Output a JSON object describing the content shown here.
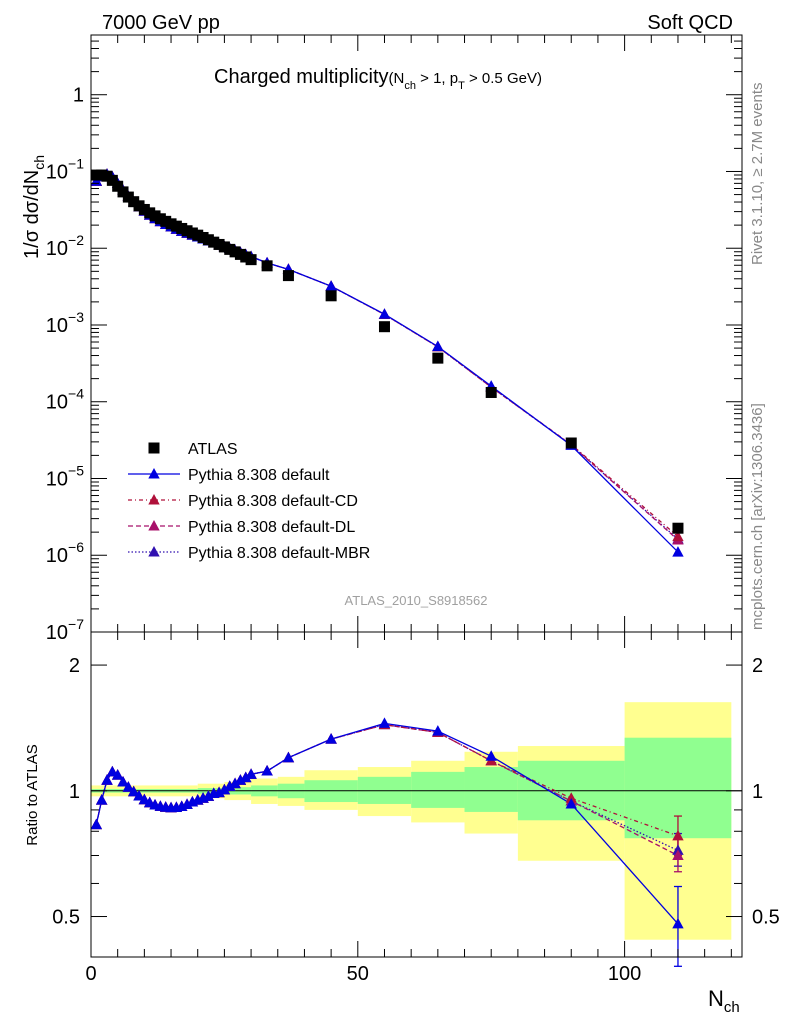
{
  "header": {
    "left": "7000 GeV pp",
    "right": "Soft QCD"
  },
  "side_labels": {
    "rivet": "Rivet 3.1.10, ≥ 2.7M events",
    "source": "mcplots.cern.ch [arXiv:1306.3436]"
  },
  "colors": {
    "atlas": "#000000",
    "default": "#0000e0",
    "cd": "#b0103a",
    "dl": "#a8106a",
    "mbr": "#3010b0",
    "band_stat": "#90ff90",
    "band_total": "#ffff90"
  },
  "chart_data": [
    {
      "type": "scatter",
      "title_main": "Charged multiplicity",
      "title_sub_prefix": "(N",
      "title_sub_sub1": "ch",
      "title_sub_mid": " > 1, p",
      "title_sub_sub2": "T",
      "title_sub_suffix": " > 0.5 GeV)",
      "ylabel": "1/σ dσ/dN",
      "ylabel_sub": "ch",
      "yscale": "log",
      "ylim": [
        1e-07,
        6
      ],
      "xlim": [
        0,
        122
      ],
      "watermark": "ATLAS_2010_S8918562",
      "ytick_labels": [
        {
          "base": "10",
          "exp": "−7",
          "value": 1e-07
        },
        {
          "base": "10",
          "exp": "−6",
          "value": 1e-06
        },
        {
          "base": "10",
          "exp": "−5",
          "value": 1e-05
        },
        {
          "base": "10",
          "exp": "−4",
          "value": 0.0001
        },
        {
          "base": "10",
          "exp": "−3",
          "value": 0.001
        },
        {
          "base": "10",
          "exp": "−2",
          "value": 0.01
        },
        {
          "base": "10",
          "exp": "−1",
          "value": 0.1
        },
        {
          "base": "1",
          "exp": "",
          "value": 1
        }
      ],
      "legend": [
        {
          "label": "ATLAS",
          "key": "atlas",
          "marker": "square",
          "dash": ""
        },
        {
          "label": "Pythia 8.308 default",
          "key": "default",
          "marker": "triangle",
          "dash": ""
        },
        {
          "label": "Pythia 8.308 default-CD",
          "key": "cd",
          "marker": "triangle",
          "dash": "4,3,1,3"
        },
        {
          "label": "Pythia 8.308 default-DL",
          "key": "dl",
          "marker": "triangle",
          "dash": "5,3"
        },
        {
          "label": "Pythia 8.308 default-MBR",
          "key": "mbr",
          "marker": "triangle",
          "dash": "1.5,2"
        }
      ],
      "atlas": {
        "x": [
          1,
          2,
          3,
          4,
          5,
          6,
          7,
          8,
          9,
          10,
          11,
          12,
          13,
          14,
          15,
          16,
          17,
          18,
          19,
          20,
          21,
          22,
          23,
          24,
          25,
          26,
          27,
          28,
          29,
          30,
          33,
          37,
          45,
          55,
          65,
          75,
          90,
          110
        ],
        "y": [
          0.0898,
          0.0899,
          0.0868,
          0.0766,
          0.0642,
          0.0542,
          0.0464,
          0.0404,
          0.0357,
          0.032,
          0.0289,
          0.0264,
          0.0242,
          0.0224,
          0.0208,
          0.0194,
          0.0181,
          0.0169,
          0.0158,
          0.0148,
          0.0138,
          0.0129,
          0.012,
          0.0112,
          0.0104,
          0.00966,
          0.00897,
          0.00831,
          0.00769,
          0.0071,
          0.0059,
          0.0044,
          0.0024,
          0.00095,
          0.00037,
          0.000132,
          2.9e-05,
          2.25e-06
        ]
      },
      "default": {
        "x": [
          1,
          2,
          3,
          4,
          5,
          6,
          7,
          8,
          9,
          10,
          11,
          12,
          13,
          14,
          15,
          16,
          17,
          18,
          19,
          20,
          21,
          22,
          23,
          24,
          25,
          26,
          27,
          28,
          29,
          30,
          33,
          37,
          45,
          55,
          65,
          75,
          90,
          110
        ],
        "y": [
          0.0745,
          0.0852,
          0.092,
          0.085,
          0.07,
          0.0569,
          0.0473,
          0.0402,
          0.0347,
          0.0304,
          0.027,
          0.0243,
          0.0222,
          0.0204,
          0.019,
          0.0177,
          0.0166,
          0.0157,
          0.0148,
          0.014,
          0.0132,
          0.0124,
          0.0118,
          0.0111,
          0.0105,
          0.00992,
          0.00933,
          0.00879,
          0.00827,
          0.00777,
          0.00644,
          0.0053,
          0.0032,
          0.00138,
          0.000525,
          0.00016,
          2.7e-05,
          1.1e-06
        ]
      },
      "cd": {
        "x": [
          1,
          2,
          3,
          4,
          5,
          6,
          7,
          8,
          9,
          10,
          11,
          12,
          13,
          14,
          15,
          16,
          17,
          18,
          19,
          20,
          21,
          22,
          23,
          24,
          25,
          26,
          27,
          28,
          29,
          30,
          33,
          37,
          45,
          55,
          65,
          75,
          90,
          110
        ],
        "y": [
          0.0745,
          0.0852,
          0.092,
          0.085,
          0.07,
          0.0569,
          0.0473,
          0.0402,
          0.0347,
          0.0304,
          0.027,
          0.0243,
          0.0222,
          0.0204,
          0.019,
          0.0177,
          0.0166,
          0.0157,
          0.0148,
          0.014,
          0.0132,
          0.0124,
          0.0118,
          0.0111,
          0.0105,
          0.00992,
          0.00933,
          0.00879,
          0.00827,
          0.00777,
          0.00644,
          0.0053,
          0.0032,
          0.00137,
          0.00052,
          0.000155,
          2.78e-05,
          1.75e-06
        ]
      },
      "dl": {
        "x": [
          1,
          2,
          3,
          4,
          5,
          6,
          7,
          8,
          9,
          10,
          11,
          12,
          13,
          14,
          15,
          16,
          17,
          18,
          19,
          20,
          21,
          22,
          23,
          24,
          25,
          26,
          27,
          28,
          29,
          30,
          33,
          37,
          45,
          55,
          65,
          75,
          90,
          110
        ],
        "y": [
          0.0745,
          0.0852,
          0.092,
          0.085,
          0.07,
          0.0569,
          0.0473,
          0.0402,
          0.0347,
          0.0304,
          0.027,
          0.0243,
          0.0222,
          0.0204,
          0.019,
          0.0177,
          0.0166,
          0.0157,
          0.0148,
          0.014,
          0.0132,
          0.0124,
          0.0118,
          0.0111,
          0.0105,
          0.00992,
          0.00933,
          0.00879,
          0.00827,
          0.00777,
          0.00644,
          0.0053,
          0.0032,
          0.00137,
          0.00052,
          0.000155,
          2.74e-05,
          1.58e-06
        ]
      },
      "mbr": {
        "x": [
          1,
          2,
          3,
          4,
          5,
          6,
          7,
          8,
          9,
          10,
          11,
          12,
          13,
          14,
          15,
          16,
          17,
          18,
          19,
          20,
          21,
          22,
          23,
          24,
          25,
          26,
          27,
          28,
          29,
          30,
          33,
          37,
          45,
          55,
          65,
          75,
          90,
          110
        ],
        "y": [
          0.0745,
          0.0852,
          0.092,
          0.085,
          0.07,
          0.0569,
          0.0473,
          0.0402,
          0.0347,
          0.0304,
          0.027,
          0.0243,
          0.0222,
          0.0204,
          0.019,
          0.0177,
          0.0166,
          0.0157,
          0.0148,
          0.014,
          0.0132,
          0.0124,
          0.0118,
          0.0111,
          0.0105,
          0.00992,
          0.00933,
          0.00879,
          0.00827,
          0.00777,
          0.00644,
          0.0053,
          0.0032,
          0.00137,
          0.00052,
          0.000155,
          2.74e-05,
          1.62e-06
        ]
      }
    },
    {
      "type": "line",
      "ylabel": "Ratio to ATLAS",
      "yscale": "log",
      "ylim": [
        0.4,
        2.4
      ],
      "xlim": [
        0,
        122
      ],
      "xlabel": "N",
      "xlabel_sub": "ch",
      "xtick_labels": [
        {
          "value": 0,
          "label": "0"
        },
        {
          "value": 50,
          "label": "50"
        },
        {
          "value": 100,
          "label": "100"
        }
      ],
      "ytick_labels": [
        {
          "value": 0.5,
          "label": "0.5"
        },
        {
          "value": 1,
          "label": "1"
        },
        {
          "value": 2,
          "label": "2"
        }
      ],
      "bands": [
        {
          "xlo": 0,
          "xhi": 20,
          "stat": [
            0.99,
            1.01
          ],
          "total": [
            0.97,
            1.03
          ]
        },
        {
          "xlo": 20,
          "xhi": 25,
          "stat": [
            0.985,
            1.015
          ],
          "total": [
            0.96,
            1.04
          ]
        },
        {
          "xlo": 25,
          "xhi": 30,
          "stat": [
            0.98,
            1.02
          ],
          "total": [
            0.95,
            1.05
          ]
        },
        {
          "xlo": 30,
          "xhi": 35,
          "stat": [
            0.97,
            1.03
          ],
          "total": [
            0.93,
            1.07
          ]
        },
        {
          "xlo": 35,
          "xhi": 40,
          "stat": [
            0.96,
            1.04
          ],
          "total": [
            0.92,
            1.08
          ]
        },
        {
          "xlo": 40,
          "xhi": 50,
          "stat": [
            0.94,
            1.06
          ],
          "total": [
            0.9,
            1.12
          ]
        },
        {
          "xlo": 50,
          "xhi": 60,
          "stat": [
            0.93,
            1.08
          ],
          "total": [
            0.87,
            1.14
          ]
        },
        {
          "xlo": 60,
          "xhi": 70,
          "stat": [
            0.91,
            1.11
          ],
          "total": [
            0.84,
            1.18
          ]
        },
        {
          "xlo": 70,
          "xhi": 80,
          "stat": [
            0.89,
            1.14
          ],
          "total": [
            0.79,
            1.24
          ]
        },
        {
          "xlo": 80,
          "xhi": 100,
          "stat": [
            0.85,
            1.18
          ],
          "total": [
            0.68,
            1.28
          ]
        },
        {
          "xlo": 100,
          "xhi": 120,
          "stat": [
            0.77,
            1.34
          ],
          "total": [
            0.44,
            1.63
          ]
        }
      ],
      "series": [
        {
          "key": "default",
          "x": [
            1,
            2,
            3,
            4,
            5,
            6,
            7,
            8,
            9,
            10,
            11,
            12,
            13,
            14,
            15,
            16,
            17,
            18,
            19,
            20,
            21,
            22,
            23,
            24,
            25,
            26,
            27,
            28,
            29,
            30,
            33,
            37,
            45,
            55,
            65,
            75,
            90,
            110
          ],
          "y": [
            0.83,
            0.95,
            1.06,
            1.11,
            1.09,
            1.05,
            1.02,
            0.995,
            0.972,
            0.952,
            0.936,
            0.925,
            0.918,
            0.913,
            0.911,
            0.912,
            0.917,
            0.927,
            0.94,
            0.95,
            0.96,
            0.97,
            0.985,
            0.99,
            1.005,
            1.025,
            1.04,
            1.06,
            1.075,
            1.095,
            1.115,
            1.2,
            1.33,
            1.45,
            1.39,
            1.21,
            0.93,
            0.48
          ],
          "err": [
            [
              110,
              0.38,
              0.59
            ]
          ]
        },
        {
          "key": "cd",
          "x": [
            1,
            2,
            3,
            4,
            5,
            6,
            7,
            8,
            9,
            10,
            11,
            12,
            13,
            14,
            15,
            16,
            17,
            18,
            19,
            20,
            21,
            22,
            23,
            24,
            25,
            26,
            27,
            28,
            29,
            30,
            33,
            37,
            45,
            55,
            65,
            75,
            90,
            110
          ],
          "y": [
            0.83,
            0.95,
            1.06,
            1.11,
            1.09,
            1.05,
            1.02,
            0.995,
            0.972,
            0.952,
            0.936,
            0.925,
            0.918,
            0.913,
            0.911,
            0.912,
            0.917,
            0.927,
            0.94,
            0.95,
            0.96,
            0.97,
            0.985,
            0.99,
            1.005,
            1.025,
            1.04,
            1.06,
            1.075,
            1.095,
            1.115,
            1.2,
            1.33,
            1.44,
            1.38,
            1.18,
            0.96,
            0.78
          ],
          "err": [
            [
              110,
              0.7,
              0.87
            ]
          ]
        },
        {
          "key": "dl",
          "x": [
            1,
            2,
            3,
            4,
            5,
            6,
            7,
            8,
            9,
            10,
            11,
            12,
            13,
            14,
            15,
            16,
            17,
            18,
            19,
            20,
            21,
            22,
            23,
            24,
            25,
            26,
            27,
            28,
            29,
            30,
            33,
            37,
            45,
            55,
            65,
            75,
            90,
            110
          ],
          "y": [
            0.83,
            0.95,
            1.06,
            1.11,
            1.09,
            1.05,
            1.02,
            0.995,
            0.972,
            0.952,
            0.936,
            0.925,
            0.918,
            0.913,
            0.911,
            0.912,
            0.917,
            0.927,
            0.94,
            0.95,
            0.96,
            0.97,
            0.985,
            0.99,
            1.005,
            1.025,
            1.04,
            1.06,
            1.075,
            1.095,
            1.115,
            1.2,
            1.33,
            1.44,
            1.38,
            1.18,
            0.945,
            0.7
          ],
          "err": [
            [
              110,
              0.64,
              0.77
            ]
          ]
        },
        {
          "key": "mbr",
          "x": [
            1,
            2,
            3,
            4,
            5,
            6,
            7,
            8,
            9,
            10,
            11,
            12,
            13,
            14,
            15,
            16,
            17,
            18,
            19,
            20,
            21,
            22,
            23,
            24,
            25,
            26,
            27,
            28,
            29,
            30,
            33,
            37,
            45,
            55,
            65,
            75,
            90,
            110
          ],
          "y": [
            0.83,
            0.95,
            1.06,
            1.11,
            1.09,
            1.05,
            1.02,
            0.995,
            0.972,
            0.952,
            0.936,
            0.925,
            0.918,
            0.913,
            0.911,
            0.912,
            0.917,
            0.927,
            0.94,
            0.95,
            0.96,
            0.97,
            0.985,
            0.99,
            1.005,
            1.025,
            1.04,
            1.06,
            1.075,
            1.095,
            1.115,
            1.2,
            1.33,
            1.44,
            1.38,
            1.18,
            0.945,
            0.72
          ],
          "err": [
            [
              110,
              0.66,
              0.79
            ]
          ]
        }
      ]
    }
  ]
}
